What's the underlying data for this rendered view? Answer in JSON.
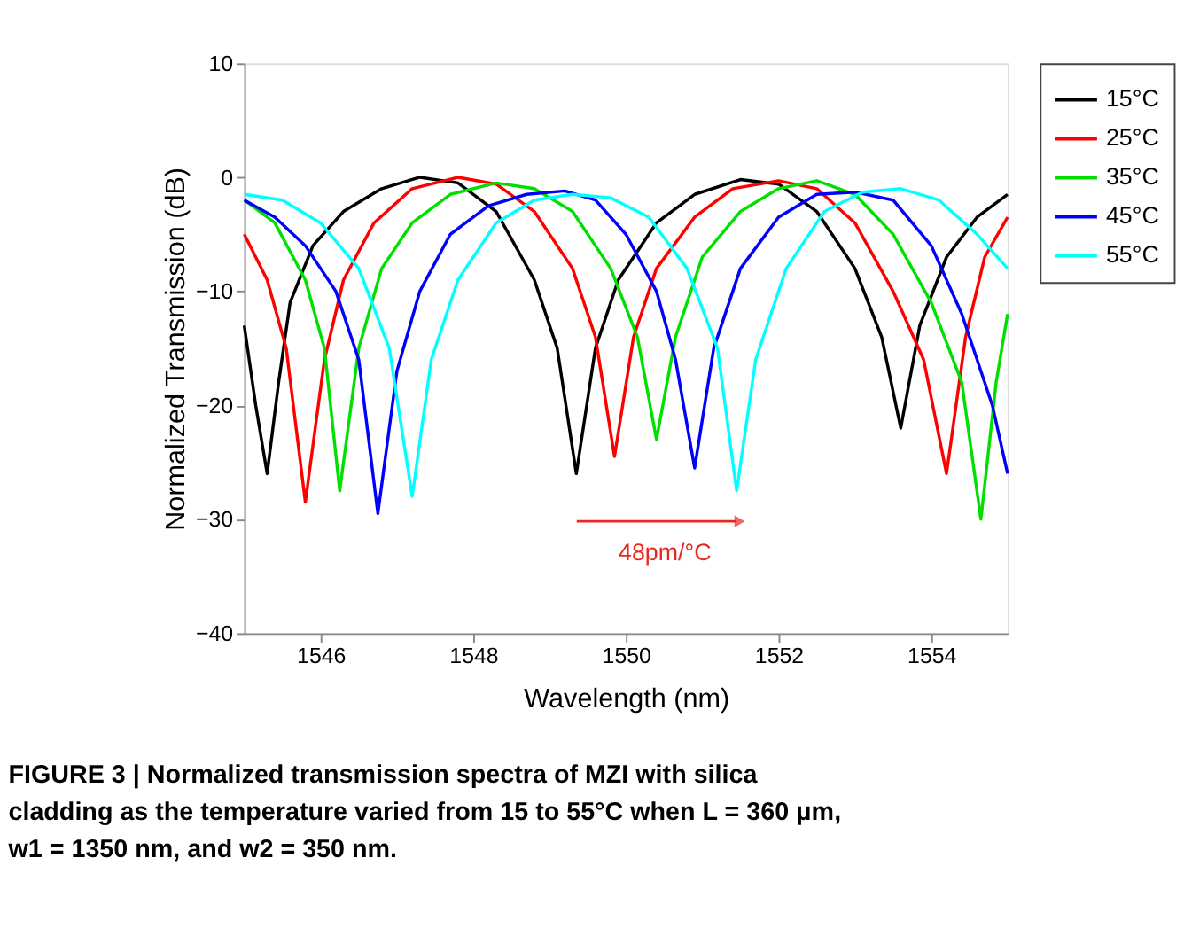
{
  "chart_data": {
    "type": "line",
    "xlabel": "Wavelength (nm)",
    "ylabel": "Normalized Transmission (dB)",
    "xlim": [
      1545,
      1555
    ],
    "ylim": [
      -40,
      10
    ],
    "xticks": [
      1546,
      1548,
      1550,
      1552,
      1554
    ],
    "yticks": [
      -40,
      -30,
      -20,
      -10,
      0,
      10
    ],
    "grid": false,
    "legend": "top right",
    "marker": "none",
    "line_style": "solid",
    "series": [
      {
        "name": "15°C",
        "color": "#000000",
        "x": [
          1545.0,
          1545.15,
          1545.3,
          1545.45,
          1545.6,
          1545.9,
          1546.3,
          1546.8,
          1547.3,
          1547.8,
          1548.3,
          1548.8,
          1549.1,
          1549.35,
          1549.6,
          1549.9,
          1550.4,
          1550.9,
          1551.5,
          1552.0,
          1552.5,
          1553.0,
          1553.35,
          1553.6,
          1553.85,
          1554.2,
          1554.6,
          1555.0
        ],
        "values": [
          -13,
          -20,
          -26,
          -18,
          -11,
          -6,
          -3,
          -1,
          0,
          -0.5,
          -3,
          -9,
          -15,
          -26,
          -15,
          -9,
          -4,
          -1.5,
          -0.2,
          -0.6,
          -3,
          -8,
          -14,
          -22,
          -13,
          -7,
          -3.5,
          -1.5
        ]
      },
      {
        "name": "25°C",
        "color": "#ff0000",
        "x": [
          1545.0,
          1545.3,
          1545.55,
          1545.8,
          1546.05,
          1546.3,
          1546.7,
          1547.2,
          1547.8,
          1548.3,
          1548.8,
          1549.3,
          1549.6,
          1549.85,
          1550.1,
          1550.4,
          1550.9,
          1551.4,
          1552.0,
          1552.5,
          1553.0,
          1553.5,
          1553.9,
          1554.2,
          1554.45,
          1554.7,
          1555.0
        ],
        "values": [
          -5,
          -9,
          -15,
          -28.5,
          -16,
          -9,
          -4,
          -1,
          0,
          -0.6,
          -3,
          -8,
          -14,
          -24.5,
          -14,
          -8,
          -3.5,
          -1,
          -0.3,
          -1,
          -4,
          -10,
          -16,
          -26,
          -14,
          -7,
          -3.5
        ]
      },
      {
        "name": "35°C",
        "color": "#00e000",
        "x": [
          1545.0,
          1545.4,
          1545.8,
          1546.05,
          1546.25,
          1546.5,
          1546.8,
          1547.2,
          1547.7,
          1548.3,
          1548.8,
          1549.3,
          1549.8,
          1550.15,
          1550.4,
          1550.65,
          1551.0,
          1551.5,
          1552.0,
          1552.5,
          1553.0,
          1553.5,
          1554.0,
          1554.4,
          1554.65,
          1554.85,
          1555.0
        ],
        "values": [
          -2,
          -4,
          -9,
          -15,
          -27.5,
          -15,
          -8,
          -4,
          -1.5,
          -0.5,
          -1,
          -3,
          -8,
          -14,
          -23,
          -14,
          -7,
          -3,
          -1,
          -0.3,
          -1.5,
          -5,
          -11,
          -18,
          -30,
          -18,
          -12
        ]
      },
      {
        "name": "45°C",
        "color": "#0000ff",
        "x": [
          1545.0,
          1545.4,
          1545.8,
          1546.2,
          1546.5,
          1546.75,
          1547.0,
          1547.3,
          1547.7,
          1548.2,
          1548.7,
          1549.2,
          1549.6,
          1550.0,
          1550.4,
          1550.65,
          1550.9,
          1551.15,
          1551.5,
          1552.0,
          1552.5,
          1553.0,
          1553.5,
          1554.0,
          1554.4,
          1554.8,
          1555.0
        ],
        "values": [
          -2,
          -3.5,
          -6,
          -10,
          -16,
          -29.5,
          -17,
          -10,
          -5,
          -2.5,
          -1.5,
          -1.2,
          -2,
          -5,
          -10,
          -16,
          -25.5,
          -15,
          -8,
          -3.5,
          -1.5,
          -1.3,
          -2,
          -6,
          -12,
          -20,
          -26
        ]
      },
      {
        "name": "55°C",
        "color": "#00ffff",
        "x": [
          1545.0,
          1545.5,
          1546.0,
          1546.5,
          1546.9,
          1547.2,
          1547.45,
          1547.8,
          1548.3,
          1548.8,
          1549.3,
          1549.8,
          1550.3,
          1550.8,
          1551.2,
          1551.45,
          1551.7,
          1552.1,
          1552.6,
          1553.1,
          1553.6,
          1554.1,
          1554.6,
          1555.0
        ],
        "values": [
          -1.5,
          -2,
          -4,
          -8,
          -15,
          -28,
          -16,
          -9,
          -4,
          -2,
          -1.5,
          -1.8,
          -3.5,
          -8,
          -15,
          -27.5,
          -16,
          -8,
          -3,
          -1.3,
          -1,
          -2,
          -5,
          -8
        ]
      }
    ],
    "annotations": [
      "48pm/°C",
      "FIGURE 3 | Normalized transmission spectra of MZI with silica cladding as the temperature varied from 15 to 55°C when L = 360 μm, w1 = 1350 nm, and w2 = 350 nm."
    ]
  }
}
